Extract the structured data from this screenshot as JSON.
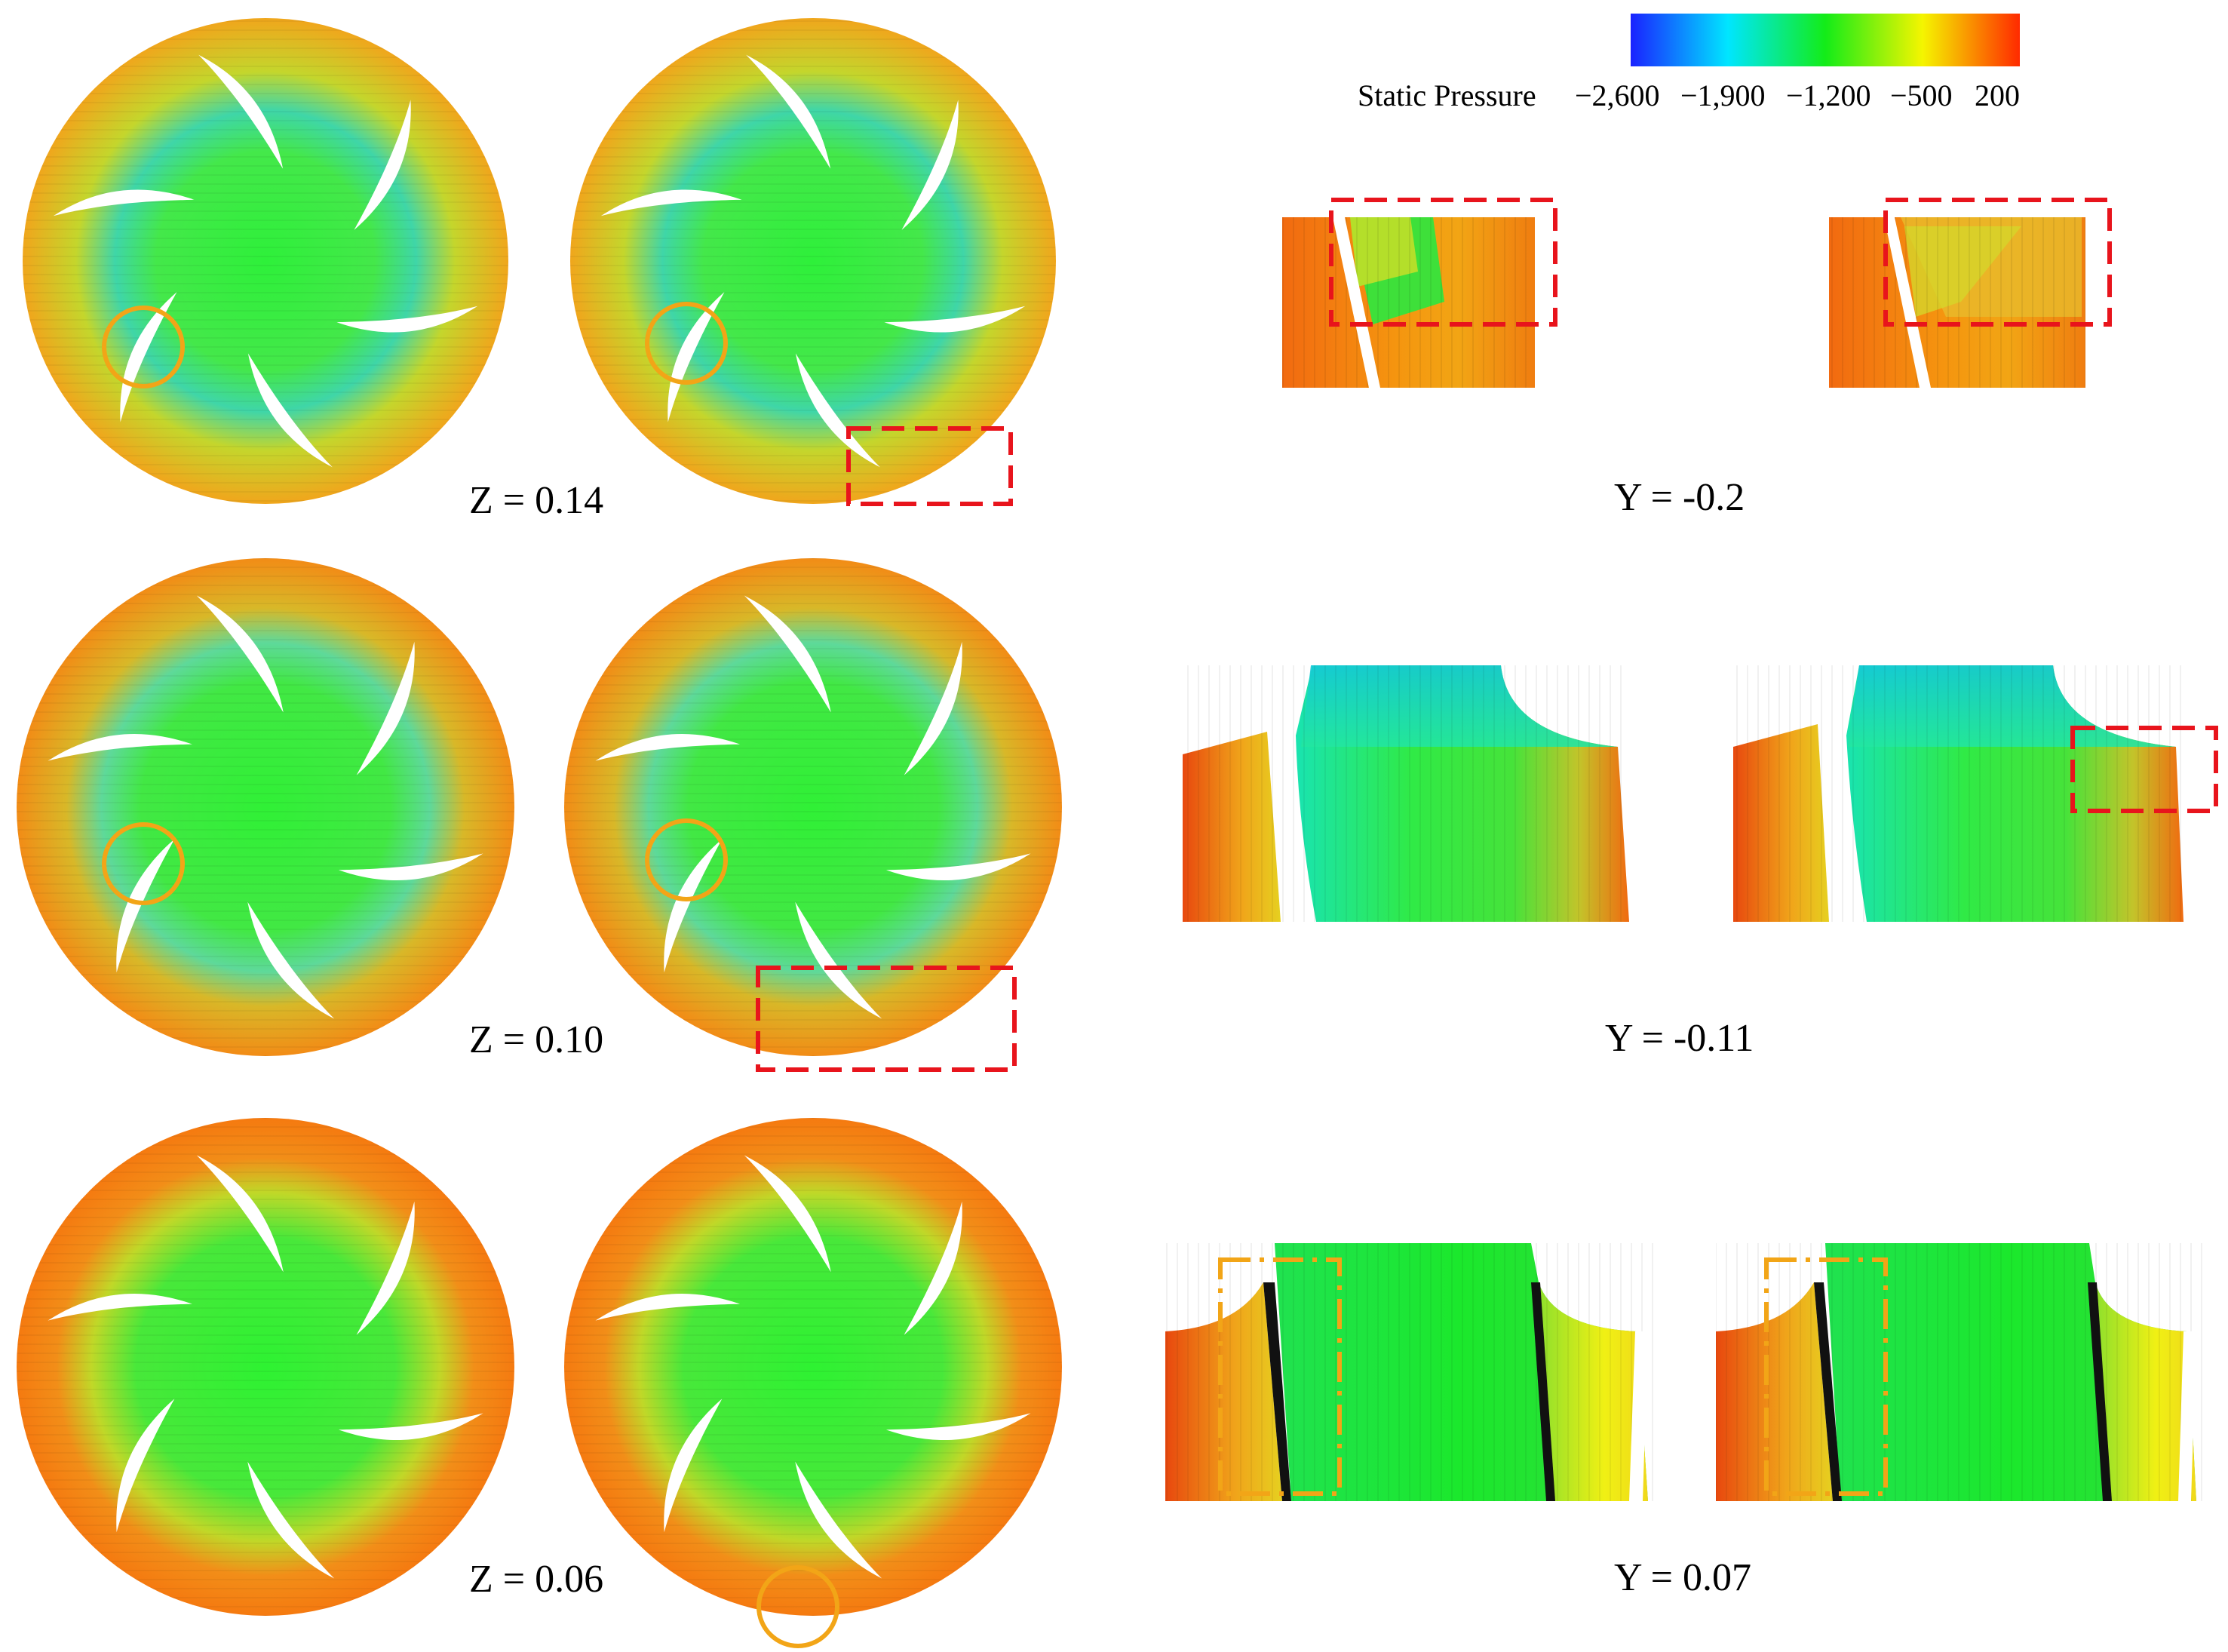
{
  "colorbar": {
    "title": "Static Pressure",
    "ticks": [
      "−2,600",
      "−1,900",
      "−1,200",
      "−500",
      "200"
    ],
    "colors": [
      "#1a22ff",
      "#00e6ff",
      "#13ec18",
      "#f5f500",
      "#ff2a00"
    ]
  },
  "panels": {
    "row1": {
      "z_label": "Z = 0.14",
      "y_label": "Y = -0.2"
    },
    "row2": {
      "z_label": "Z = 0.10",
      "y_label": "Y = -0.11"
    },
    "row3": {
      "z_label": "Z = 0.06",
      "y_label": "Y = 0.07"
    }
  },
  "annotation_colors": {
    "red_box": "#e8141c",
    "orange_mark": "#f2a517"
  }
}
